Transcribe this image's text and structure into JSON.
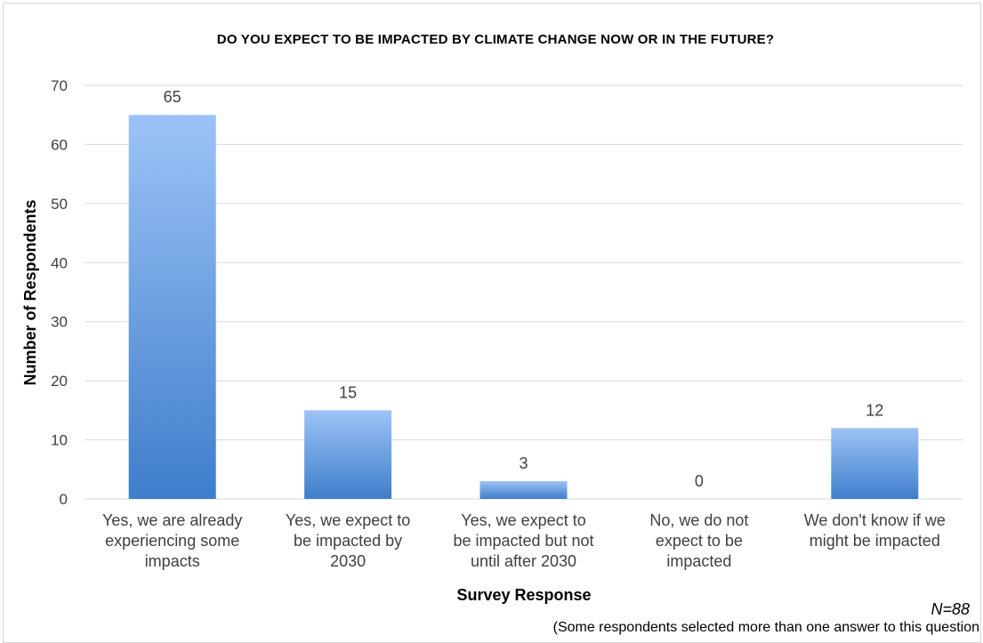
{
  "chart_data": {
    "type": "bar",
    "title": "DO YOU EXPECT TO BE IMPACTED BY CLIMATE CHANGE NOW OR IN THE FUTURE?",
    "xlabel": "Survey Response",
    "ylabel": "Number of Respondents",
    "ylim": [
      0,
      70
    ],
    "yticks": [
      0,
      10,
      20,
      30,
      40,
      50,
      60,
      70
    ],
    "grid": true,
    "categories": [
      [
        "Yes, we are already",
        "experiencing some",
        "impacts"
      ],
      [
        "Yes, we expect to",
        "be impacted by",
        "2030"
      ],
      [
        "Yes, we expect to",
        "be impacted but not",
        "until after 2030"
      ],
      [
        "No, we do not",
        "expect to be",
        "impacted"
      ],
      [
        "We don't know if we",
        "might be impacted"
      ]
    ],
    "values": [
      65,
      15,
      3,
      0,
      12
    ],
    "bar_color_top": "#9cc3f7",
    "bar_color_bottom": "#3f7ecb"
  },
  "notes": {
    "n": "N=88",
    "footnote": "(Some respondents selected more than one answer to this question"
  }
}
